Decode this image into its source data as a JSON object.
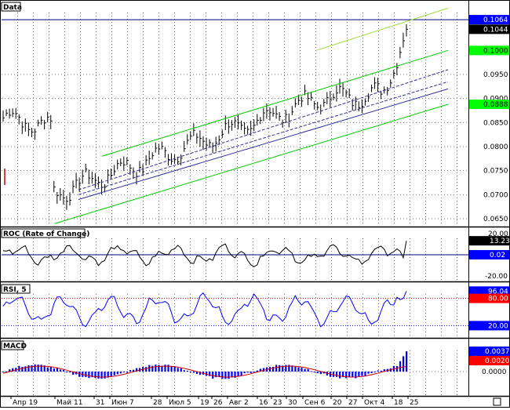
{
  "colors": {
    "background": "#ffffff",
    "frame": "#000000",
    "price_bar": "#000000",
    "channel_outer": "#00cc00",
    "channel_inner": "#333399",
    "hline": "#000080",
    "roc_line": "#000000",
    "rsi_line": "#0000ff",
    "rsi_level_80": "#cc0000",
    "rsi_level_20": "#0000ff",
    "macd_hist": "#0000ff",
    "macd_signal": "#cc0000",
    "tag_blue": "#0000ff",
    "tag_black": "#000000",
    "tag_green": "#00ff00",
    "tag_red": "#ff0000"
  },
  "panels": {
    "price": {
      "label": "Data",
      "tick_labels": [
        "0.0950",
        "0.0900",
        "0.0850",
        "0.0800",
        "0.0750",
        "0.0700",
        "0.0650"
      ],
      "tags": [
        {
          "value": "0.1064",
          "style": "blue"
        },
        {
          "value": "0.1044",
          "style": "black"
        },
        {
          "value": "0.1000",
          "style": "green"
        },
        {
          "value": "0.0888",
          "style": "green"
        }
      ]
    },
    "roc": {
      "label": "ROC (Rate of Change)",
      "tick_labels": [
        "20.00",
        "-20.00"
      ],
      "tags": [
        {
          "value": "13.23",
          "style": "black"
        },
        {
          "value": "0.02",
          "style": "blue"
        }
      ]
    },
    "rsi": {
      "label": "RSI, 5",
      "tags": [
        {
          "value": "96.04",
          "style": "blue"
        },
        {
          "value": "80.00",
          "style": "red"
        },
        {
          "value": "20.00",
          "style": "blue"
        }
      ]
    },
    "macd": {
      "label": "MACD",
      "tick_labels": [
        "0.0000"
      ],
      "tags": [
        {
          "value": "0.0037",
          "style": "blue"
        },
        {
          "value": "0.0020",
          "style": "red"
        }
      ]
    }
  },
  "x_axis_labels": [
    "Апр 19",
    "Май 11",
    "31",
    "Июн 7",
    "28",
    "Июл 5",
    "19",
    "26",
    "Авг 2",
    "16",
    "23",
    "30",
    "Сен 6",
    "20",
    "27",
    "Окт 4",
    "18",
    "25"
  ]
}
